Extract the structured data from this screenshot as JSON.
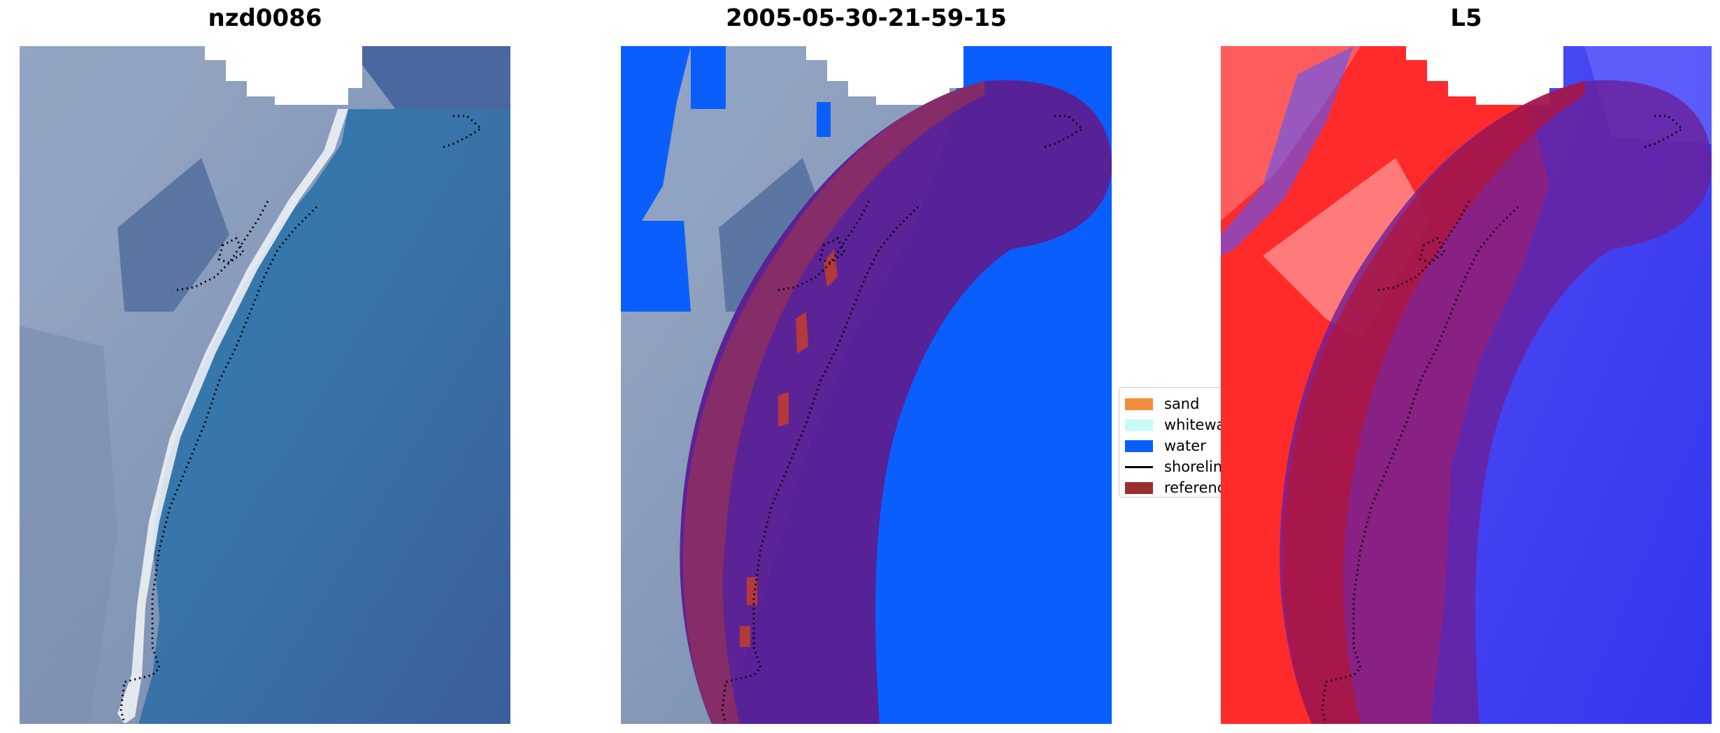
{
  "panels": [
    {
      "title": "nzd0086"
    },
    {
      "title": "2005-05-30-21-59-15"
    },
    {
      "title": "L5"
    }
  ],
  "legend": {
    "items": [
      {
        "label": "sand",
        "color": "#f28c3a",
        "kind": "patch"
      },
      {
        "label": "whitewater",
        "color": "#c9fbf6",
        "kind": "patch"
      },
      {
        "label": "water",
        "color": "#0a5ffc",
        "kind": "patch"
      },
      {
        "label": "shoreline",
        "color": "#000000",
        "kind": "line"
      },
      {
        "label": "reference",
        "color": "#9b2e2e",
        "kind": "patch"
      }
    ]
  },
  "colors": {
    "ocean": "#3d73a6",
    "land": "#7f93b7",
    "water_class": "#0a5ffc",
    "buffer": "#5a1f95",
    "buffer_edge": "#8a2d64",
    "index_high": "#ff1a1a",
    "index_low": "#2a2aff"
  }
}
